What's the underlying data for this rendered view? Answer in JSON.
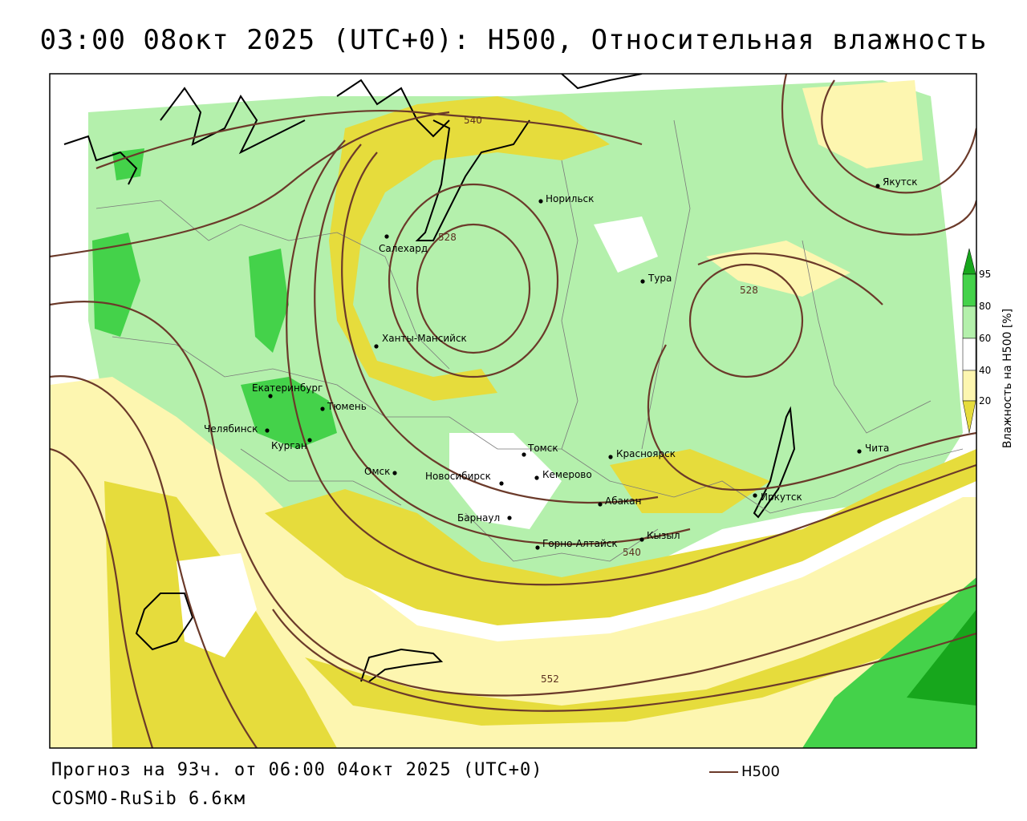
{
  "title": "03:00 08окт 2025 (UTC+0): H500, Относительная влажность",
  "forecast_line": "Прогноз на 93ч. от 06:00 04окт 2025 (UTC+0)",
  "model_line": "COSMO-RuSib 6.6км",
  "legend": {
    "h500_label": "H500",
    "h500_color": "#6b3a2a"
  },
  "colorbar": {
    "label": "Влажность на H500 [%]",
    "ticks": [
      "95",
      "80",
      "60",
      "40",
      "20"
    ],
    "colors": [
      "#17a61c",
      "#44d24a",
      "#b4f0ac",
      "#ffffff",
      "#fdf6b0",
      "#e6dc3c"
    ]
  },
  "cities": [
    "Якутск",
    "Норильск",
    "Салехард",
    "Тура",
    "Ханты-Мансийск",
    "Екатеринбург",
    "Тюмень",
    "Челябинск",
    "Курган",
    "Омск",
    "Новосибирск",
    "Томск",
    "Кемерово",
    "Красноярск",
    "Чита",
    "Иркутск",
    "Абакан",
    "Барнаул",
    "Горно-Алтайск",
    "Кызыл"
  ],
  "contour_labels": [
    "540",
    "528",
    "528",
    "540",
    "552"
  ]
}
